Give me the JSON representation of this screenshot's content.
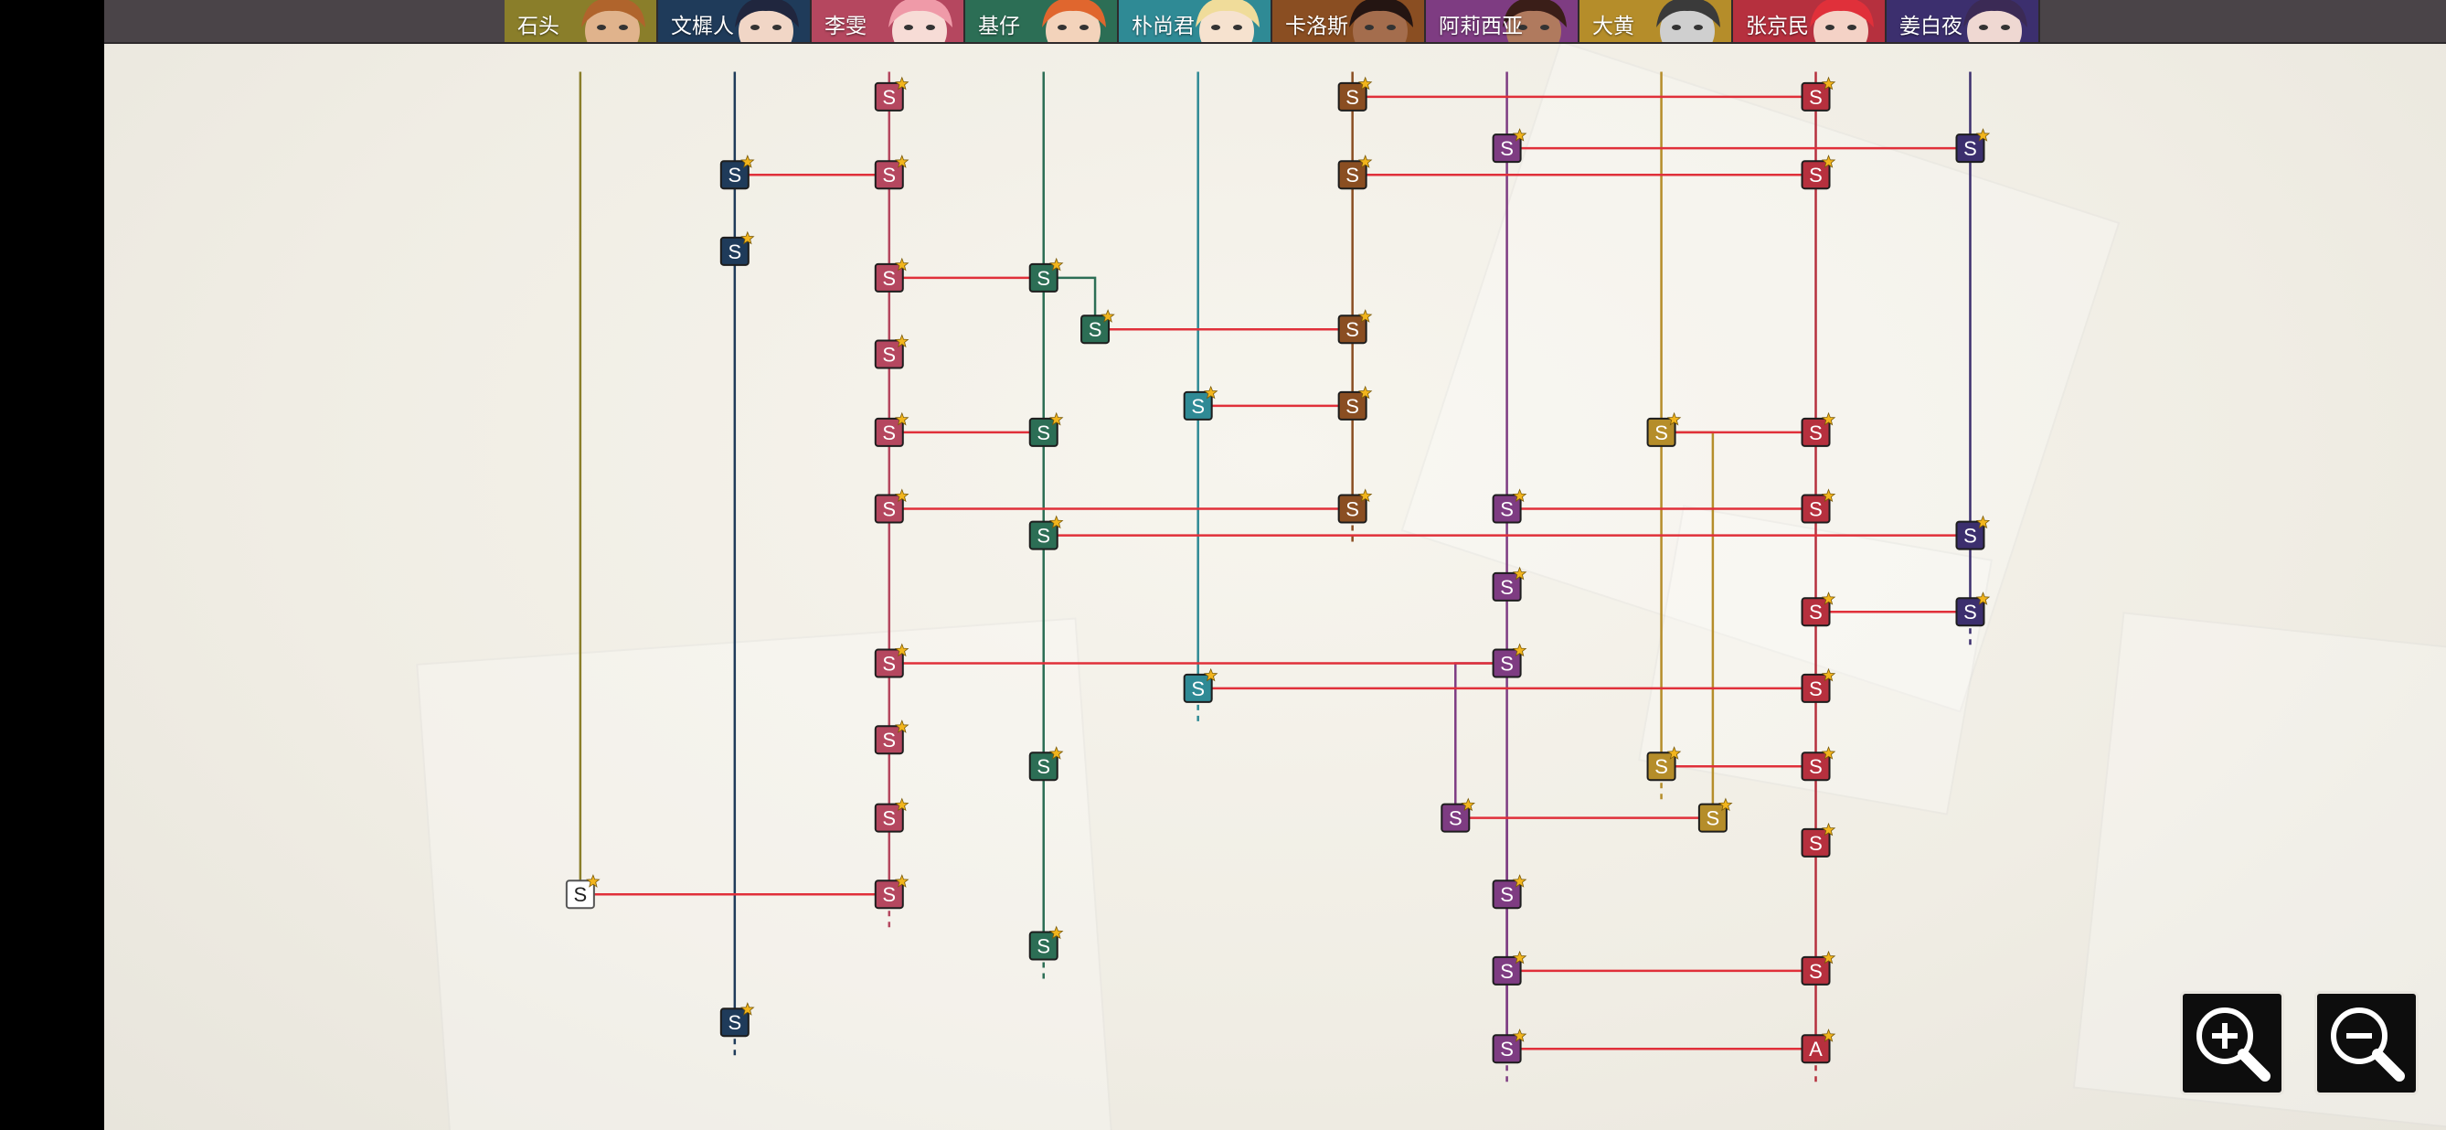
{
  "characters": [
    {
      "id": "shitou",
      "name": "石头",
      "tab_color": "#8a7e2a",
      "skin": "#e0b38c",
      "hair": "#b0642c"
    },
    {
      "id": "wenyao",
      "name": "文樨人",
      "tab_color": "#1f3b5a",
      "skin": "#f1d6c6",
      "hair": "#20263e"
    },
    {
      "id": "liwen",
      "name": "李雯",
      "tab_color": "#b5475f",
      "skin": "#f7dcd6",
      "hair": "#ef9aa8"
    },
    {
      "id": "jizai",
      "name": "基仔",
      "tab_color": "#2c6e55",
      "skin": "#f3d3bb",
      "hair": "#e0662e"
    },
    {
      "id": "piaoshang",
      "name": "朴尚君",
      "tab_color": "#2f8a95",
      "skin": "#f6e2cf",
      "hair": "#f0dc9a"
    },
    {
      "id": "kaluosi",
      "name": "卡洛斯",
      "tab_color": "#8a4e22",
      "skin": "#a46d4d",
      "hair": "#241512"
    },
    {
      "id": "aliya",
      "name": "阿莉西亚",
      "tab_color": "#7e3c82",
      "skin": "#b07a5e",
      "hair": "#3a1e18"
    },
    {
      "id": "dahuang",
      "name": "大黄",
      "tab_color": "#b58d2a",
      "skin": "#cfcfcf",
      "hair": "#3a3a3a"
    },
    {
      "id": "zhangjing",
      "name": "张京民",
      "tab_color": "#b6303e",
      "skin": "#f4d2c6",
      "hair": "#e0303a"
    },
    {
      "id": "jiangbai",
      "name": "姜白夜",
      "tab_color": "#3c2f6e",
      "skin": "#efd8d2",
      "hair": "#3b2a55"
    }
  ],
  "node_label_default": "S",
  "node_label_special": "A",
  "star_color": "#f2b51d",
  "connector_color": "#e0303a",
  "nodes": [
    {
      "col": 2,
      "row": 62
    },
    {
      "col": 5,
      "row": 62
    },
    {
      "col": 8,
      "row": 62
    },
    {
      "col": 6,
      "row": 95
    },
    {
      "col": 9,
      "row": 95
    },
    {
      "col": 1,
      "row": 112
    },
    {
      "col": 2,
      "row": 112
    },
    {
      "col": 5,
      "row": 112
    },
    {
      "col": 8,
      "row": 112
    },
    {
      "col": 1,
      "row": 161
    },
    {
      "col": 2,
      "row": 178
    },
    {
      "col": 3,
      "row": 178
    },
    {
      "col": "3b",
      "row": 211
    },
    {
      "col": 5,
      "row": 211
    },
    {
      "col": 2,
      "row": 227
    },
    {
      "col": 4,
      "row": 260
    },
    {
      "col": 5,
      "row": 260
    },
    {
      "col": 2,
      "row": 277
    },
    {
      "col": 3,
      "row": 277
    },
    {
      "col": 7,
      "row": 277
    },
    {
      "col": 8,
      "row": 277
    },
    {
      "col": 2,
      "row": 326
    },
    {
      "col": 5,
      "row": 326
    },
    {
      "col": 6,
      "row": 326
    },
    {
      "col": 8,
      "row": 326
    },
    {
      "col": 3,
      "row": 343
    },
    {
      "col": 9,
      "row": 343
    },
    {
      "col": 6,
      "row": 376
    },
    {
      "col": 8,
      "row": 392
    },
    {
      "col": 9,
      "row": 392
    },
    {
      "col": 2,
      "row": 425
    },
    {
      "col": 6,
      "row": 425
    },
    {
      "col": 4,
      "row": 441
    },
    {
      "col": 8,
      "row": 441
    },
    {
      "col": 2,
      "row": 474
    },
    {
      "col": 3,
      "row": 491
    },
    {
      "col": 7,
      "row": 491
    },
    {
      "col": 8,
      "row": 491
    },
    {
      "col": 2,
      "row": 524
    },
    {
      "col": "6b",
      "row": 524
    },
    {
      "col": "7b",
      "row": 524
    },
    {
      "col": 8,
      "row": 540
    },
    {
      "col": 0,
      "row": 573
    },
    {
      "col": 2,
      "row": 573
    },
    {
      "col": 6,
      "row": 573
    },
    {
      "col": 3,
      "row": 606
    },
    {
      "col": 6,
      "row": 622
    },
    {
      "col": 8,
      "row": 622
    },
    {
      "col": 1,
      "row": 655
    },
    {
      "col": 6,
      "row": 672
    },
    {
      "col": 8,
      "row": 672,
      "label": "A"
    }
  ],
  "links": [
    [
      5,
      62,
      8,
      62
    ],
    [
      6,
      95,
      9,
      95
    ],
    [
      1,
      112,
      2,
      112
    ],
    [
      5,
      112,
      8,
      112
    ],
    [
      2,
      178,
      3,
      178
    ],
    [
      "3b",
      211,
      5,
      211
    ],
    [
      4,
      260,
      5,
      260
    ],
    [
      2,
      277,
      3,
      277
    ],
    [
      7,
      277,
      8,
      277
    ],
    [
      2,
      326,
      5,
      326
    ],
    [
      6,
      326,
      8,
      326
    ],
    [
      3,
      343,
      9,
      343
    ],
    [
      8,
      392,
      9,
      392
    ],
    [
      2,
      425,
      6,
      425
    ],
    [
      4,
      441,
      8,
      441
    ],
    [
      7,
      491,
      8,
      491
    ],
    [
      "6b",
      524,
      "7b",
      524
    ],
    [
      0,
      573,
      2,
      573
    ],
    [
      6,
      622,
      8,
      622
    ],
    [
      6,
      672,
      8,
      672
    ]
  ],
  "zoom": {
    "in_icon": "zoom-in-icon",
    "out_icon": "zoom-out-icon"
  }
}
